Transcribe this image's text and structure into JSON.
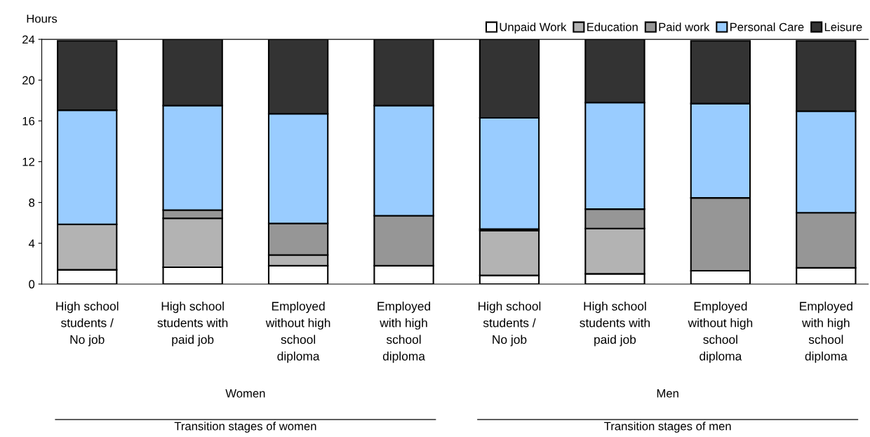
{
  "chart_data": {
    "type": "bar",
    "stacked": true,
    "ylabel": "Hours",
    "categories": [
      "High school\nstudents /\nNo job",
      "High school\nstudents with\npaid job",
      "Employed\nwithout high\nschool\ndiploma",
      "Employed\nwith high\nschool\ndiploma",
      "High school\nstudents /\nNo job",
      "High school\nstudents with\npaid job",
      "Employed\nwithout high\nschool\ndiploma",
      "Employed\nwith high\nschool\ndiploma"
    ],
    "series": [
      {
        "name": "Unpaid Work",
        "color": "#ffffff",
        "values": [
          1.4,
          1.65,
          1.8,
          1.8,
          0.85,
          1.0,
          1.3,
          1.6
        ]
      },
      {
        "name": "Education",
        "color": "#b3b3b3",
        "values": [
          4.45,
          4.8,
          1.05,
          0,
          4.4,
          4.45,
          null,
          null
        ]
      },
      {
        "name": "Paid work",
        "color": "#969696",
        "values": [
          null,
          0.8,
          3.1,
          4.9,
          0.15,
          1.9,
          7.15,
          5.4
        ]
      },
      {
        "name": "Personal Care",
        "color": "#99ccff",
        "values": [
          11.2,
          10.25,
          10.75,
          10.8,
          10.9,
          10.45,
          9.25,
          9.95
        ]
      },
      {
        "name": "Leisure",
        "color": "#333333",
        "values": [
          6.8,
          6.5,
          7.3,
          6.5,
          7.7,
          6.2,
          6.15,
          6.9
        ]
      }
    ],
    "ylim": [
      0,
      24
    ],
    "yticks": [
      0,
      4,
      8,
      12,
      16,
      20,
      24
    ],
    "grid": false,
    "legend": "top right",
    "annotations": [
      "Women",
      "Men",
      "Transition stages of women",
      "Transition stages of men"
    ]
  }
}
